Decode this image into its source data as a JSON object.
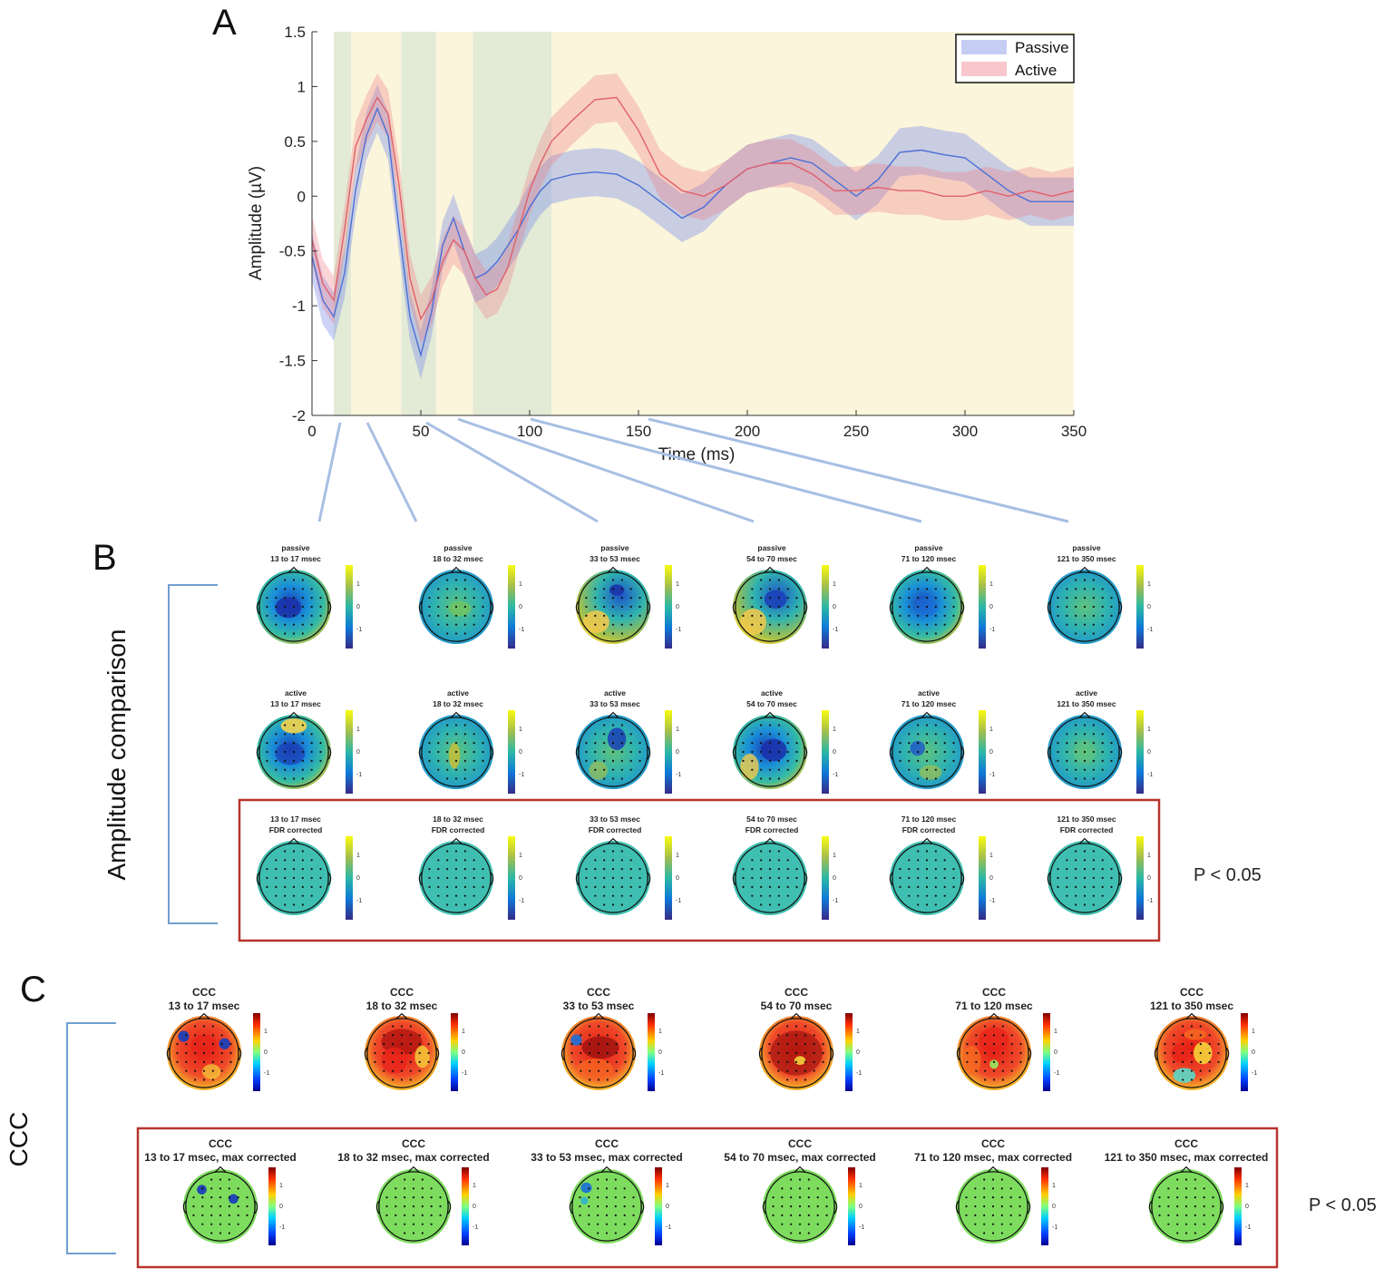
{
  "panels": {
    "a": "A",
    "b": "B",
    "c": "C"
  },
  "side_labels": {
    "amplitude": "Amplitude comparison",
    "ccc": "CCC"
  },
  "p_labels": {
    "amplitude": "P < 0.05",
    "ccc": "P < 0.05"
  },
  "colors": {
    "passive": "#4a6fd6",
    "active": "#e0606a",
    "highlight_red": "#b8332e",
    "bracket": "#6f9fd0",
    "map_teal": "#3fbfb1",
    "map_green": "#7ddc5e"
  },
  "chart_data": {
    "type": "line",
    "title": "",
    "xlabel": "Time (ms)",
    "ylabel": "Amplitude (µV)",
    "xlim": [
      0,
      350
    ],
    "ylim": [
      -2,
      1.5
    ],
    "xticks": [
      "0",
      "50",
      "100",
      "150",
      "200",
      "250",
      "300",
      "350"
    ],
    "yticks": [
      "1.5",
      "1",
      "0.5",
      "0",
      "-0.5",
      "-1",
      "-1.5",
      "-2"
    ],
    "shaded_windows": [
      {
        "label": "13 to 17 msec",
        "start": 10,
        "end": 18,
        "color": "#e3ead6"
      },
      {
        "label": "18 to 32 msec",
        "start": 18,
        "end": 41,
        "color": "#fbf5dc"
      },
      {
        "label": "33 to 53 msec",
        "start": 41,
        "end": 57,
        "color": "#e3ead6"
      },
      {
        "label": "54 to 70 msec",
        "start": 57,
        "end": 74,
        "color": "#fbf5dc"
      },
      {
        "label": "71 to 120 msec",
        "start": 74,
        "end": 110,
        "color": "#e3ead6"
      },
      {
        "label": "121 to 350 msec",
        "start": 110,
        "end": 350,
        "color": "#fbf5dc"
      }
    ],
    "x": [
      0,
      5,
      10,
      15,
      20,
      25,
      30,
      35,
      40,
      45,
      50,
      55,
      60,
      65,
      70,
      75,
      80,
      85,
      90,
      95,
      100,
      105,
      110,
      120,
      130,
      140,
      150,
      160,
      170,
      180,
      190,
      200,
      210,
      220,
      230,
      240,
      250,
      260,
      270,
      280,
      290,
      300,
      310,
      320,
      330,
      340,
      350
    ],
    "legend": [
      "Passive",
      "Active"
    ],
    "series": [
      {
        "name": "Passive",
        "values": [
          -0.55,
          -0.95,
          -1.1,
          -0.7,
          0.05,
          0.55,
          0.8,
          0.55,
          -0.3,
          -1.1,
          -1.45,
          -1.05,
          -0.45,
          -0.2,
          -0.5,
          -0.75,
          -0.7,
          -0.6,
          -0.45,
          -0.3,
          -0.1,
          0.05,
          0.15,
          0.2,
          0.22,
          0.2,
          0.1,
          -0.05,
          -0.2,
          -0.1,
          0.1,
          0.25,
          0.3,
          0.35,
          0.3,
          0.15,
          0.0,
          0.15,
          0.4,
          0.42,
          0.38,
          0.35,
          0.2,
          0.05,
          -0.05,
          -0.05,
          -0.05
        ],
        "band": 0.22
      },
      {
        "name": "Active",
        "values": [
          -0.4,
          -0.8,
          -0.95,
          -0.3,
          0.45,
          0.7,
          0.9,
          0.75,
          0.1,
          -0.75,
          -1.12,
          -0.95,
          -0.6,
          -0.4,
          -0.5,
          -0.75,
          -0.9,
          -0.85,
          -0.65,
          -0.3,
          0.05,
          0.3,
          0.5,
          0.7,
          0.88,
          0.9,
          0.6,
          0.2,
          0.05,
          0.0,
          0.1,
          0.25,
          0.3,
          0.3,
          0.2,
          0.05,
          0.05,
          0.08,
          0.05,
          0.05,
          0.0,
          0.0,
          0.05,
          0.0,
          0.05,
          0.0,
          0.05
        ],
        "band": 0.22
      }
    ]
  },
  "windows": [
    "13 to 17 msec",
    "18 to 32 msec",
    "33 to 53 msec",
    "54 to 70 msec",
    "71 to 120 msec",
    "121 to 350 msec"
  ],
  "rows": {
    "passive": {
      "prefix": "passive"
    },
    "active": {
      "prefix": "active"
    },
    "fdr": {
      "suffix": "FDR corrected"
    },
    "ccc": {
      "prefix": "CCC"
    },
    "ccc_max": {
      "prefix": "CCC",
      "suffix": ", max corrected"
    }
  },
  "colorbar_ticks": [
    "1",
    "0",
    "-1"
  ]
}
